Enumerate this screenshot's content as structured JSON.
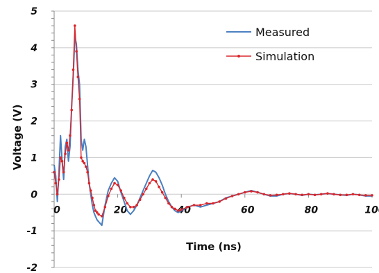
{
  "chart_data": {
    "type": "line",
    "title": "",
    "xlabel": "Time (ns)",
    "ylabel": "Voltage (V)",
    "xlim": [
      0,
      100
    ],
    "ylim": [
      -2,
      5
    ],
    "x_ticks": [
      "0",
      "20",
      "40",
      "60",
      "80",
      "100"
    ],
    "y_ticks": [
      "5",
      "4",
      "3",
      "2",
      "1",
      "0",
      "-1",
      "-2"
    ],
    "grid": "horizontal",
    "legend": "top-right",
    "series": [
      {
        "name": "Measured",
        "color": "#4a7fc1",
        "marker": "none",
        "x": [
          0,
          0.5,
          1,
          1.5,
          2,
          2.5,
          3,
          3.5,
          4,
          4.5,
          5,
          5.5,
          6,
          6.5,
          7,
          7.5,
          8,
          8.5,
          9,
          9.5,
          10,
          10.5,
          11,
          11.5,
          12,
          12.5,
          13,
          13.5,
          14,
          15,
          16,
          17,
          18,
          19,
          20,
          21,
          22,
          23,
          24,
          25,
          26,
          27,
          28,
          29,
          30,
          31,
          32,
          33,
          34,
          35,
          36,
          37,
          38,
          39,
          40,
          42,
          44,
          46,
          48,
          50,
          52,
          54,
          56,
          58,
          60,
          62,
          64,
          66,
          68,
          70,
          72,
          74,
          76,
          78,
          80,
          82,
          84,
          86,
          88,
          90,
          92,
          94,
          96,
          98,
          100
        ],
        "y": [
          0.8,
          0.5,
          -0.2,
          0.6,
          1.6,
          0.9,
          0.4,
          1.3,
          1.5,
          0.9,
          1.3,
          2.4,
          3.2,
          4.3,
          4.1,
          3.4,
          3.0,
          1.5,
          1.2,
          1.5,
          1.3,
          0.8,
          0.3,
          0.0,
          -0.3,
          -0.5,
          -0.6,
          -0.7,
          -0.75,
          -0.85,
          -0.3,
          0.1,
          0.3,
          0.45,
          0.35,
          0.05,
          -0.2,
          -0.45,
          -0.55,
          -0.45,
          -0.3,
          -0.1,
          0.1,
          0.3,
          0.5,
          0.65,
          0.6,
          0.45,
          0.25,
          0.0,
          -0.2,
          -0.35,
          -0.45,
          -0.5,
          -0.45,
          -0.35,
          -0.3,
          -0.35,
          -0.3,
          -0.25,
          -0.2,
          -0.1,
          -0.05,
          0.0,
          0.05,
          0.1,
          0.05,
          0.0,
          -0.05,
          -0.05,
          0.0,
          0.02,
          0.0,
          -0.03,
          0.0,
          -0.02,
          0.0,
          0.02,
          0.0,
          -0.02,
          -0.03,
          0.0,
          -0.02,
          -0.05,
          -0.05
        ]
      },
      {
        "name": "Simulation",
        "color": "#d9262b",
        "marker": "dot",
        "x": [
          0,
          0.5,
          1,
          1.5,
          2,
          2.5,
          3,
          3.5,
          4,
          4.5,
          5,
          5.5,
          6,
          6.5,
          7,
          7.5,
          8,
          8.5,
          9,
          9.5,
          10,
          10.5,
          11,
          11.5,
          12,
          12.5,
          13,
          13.5,
          14,
          15,
          16,
          17,
          18,
          19,
          20,
          21,
          22,
          23,
          24,
          25,
          26,
          27,
          28,
          29,
          30,
          31,
          32,
          33,
          34,
          35,
          36,
          37,
          38,
          39,
          40,
          42,
          44,
          46,
          48,
          50,
          52,
          54,
          56,
          58,
          60,
          62,
          64,
          66,
          68,
          70,
          72,
          74,
          76,
          78,
          80,
          82,
          84,
          86,
          88,
          90,
          92,
          94,
          96,
          98,
          100
        ],
        "y": [
          0.6,
          0.3,
          0.0,
          0.4,
          1.0,
          0.9,
          0.6,
          1.1,
          1.4,
          1.2,
          1.6,
          2.3,
          3.4,
          4.6,
          3.9,
          3.2,
          2.6,
          1.0,
          0.9,
          0.85,
          0.75,
          0.6,
          0.3,
          0.1,
          -0.1,
          -0.3,
          -0.45,
          -0.5,
          -0.55,
          -0.6,
          -0.35,
          -0.05,
          0.15,
          0.3,
          0.25,
          0.1,
          -0.1,
          -0.25,
          -0.35,
          -0.35,
          -0.3,
          -0.15,
          0.0,
          0.15,
          0.3,
          0.4,
          0.35,
          0.2,
          0.05,
          -0.1,
          -0.25,
          -0.35,
          -0.4,
          -0.45,
          -0.42,
          -0.35,
          -0.3,
          -0.3,
          -0.25,
          -0.25,
          -0.2,
          -0.12,
          -0.05,
          0.0,
          0.05,
          0.08,
          0.05,
          0.0,
          -0.03,
          -0.02,
          0.0,
          0.02,
          0.0,
          -0.02,
          0.0,
          -0.02,
          0.0,
          0.02,
          0.0,
          -0.02,
          -0.02,
          0.0,
          -0.02,
          -0.03,
          -0.03
        ]
      }
    ]
  }
}
